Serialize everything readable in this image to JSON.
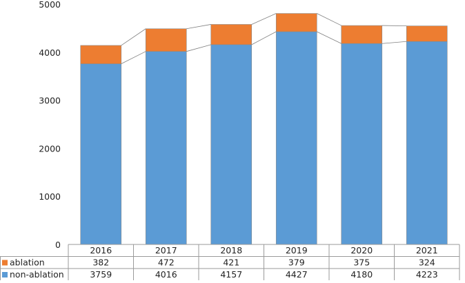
{
  "chart_data": {
    "type": "bar",
    "stacked": true,
    "categories": [
      "2016",
      "2017",
      "2018",
      "2019",
      "2020",
      "2021"
    ],
    "series": [
      {
        "name": "non-ablation",
        "values": [
          3759,
          4016,
          4157,
          4427,
          4180,
          4223
        ],
        "color": "#5b9bd5"
      },
      {
        "name": "ablation",
        "values": [
          382,
          472,
          421,
          379,
          375,
          324
        ],
        "color": "#ed7d31"
      }
    ],
    "y_ticks": [
      "0",
      "1000",
      "2000",
      "3000",
      "4000",
      "5000"
    ],
    "ylim": [
      0,
      5000
    ],
    "grid": false,
    "series_lines": true,
    "data_table": {
      "rows": [
        {
          "label": "ablation",
          "color": "#ed7d31",
          "cells": [
            "382",
            "472",
            "421",
            "379",
            "375",
            "324"
          ]
        },
        {
          "label": "non-ablation",
          "color": "#5b9bd5",
          "cells": [
            "3759",
            "4016",
            "4157",
            "4427",
            "4180",
            "4223"
          ]
        }
      ]
    }
  }
}
